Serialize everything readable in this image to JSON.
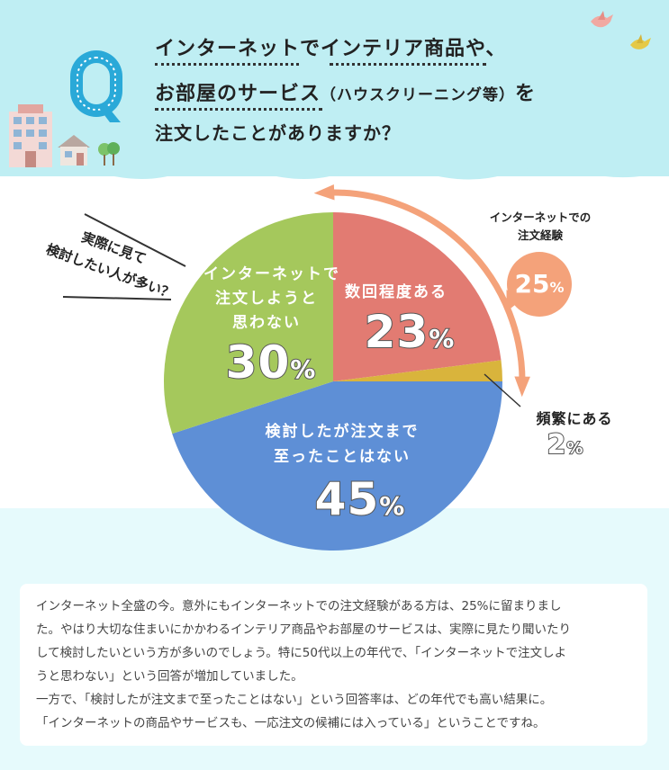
{
  "question": {
    "badge": "Q",
    "line1": "インターネットでインテリア商品や、",
    "line2_main": "お部屋のサービス",
    "line2_paren": "（ハウスクリーニング等）",
    "line2_tail": "を",
    "line3": "注文したことがありますか？"
  },
  "colors": {
    "header_bg": "#bfeef3",
    "slice_red": "#e27b72",
    "slice_yellow": "#d9b43c",
    "slice_blue": "#5e8fd6",
    "slice_green": "#a5c85c",
    "arrow": "#f4a27a"
  },
  "chart_data": {
    "type": "pie",
    "title": "インターネットでインテリア商品や、お部屋のサービス（ハウスクリーニング等）を注文したことがありますか？",
    "slices": [
      {
        "label": "数回程度ある",
        "value": 23,
        "color": "#e27b72"
      },
      {
        "label": "頻繁にある",
        "value": 2,
        "color": "#d9b43c"
      },
      {
        "label": "検討したが注文まで至ったことはない",
        "value": 45,
        "color": "#5e8fd6"
      },
      {
        "label": "インターネットで注文しようと思わない",
        "value": 30,
        "color": "#a5c85c"
      }
    ],
    "annotations": {
      "combined_label_line1": "インターネットでの",
      "combined_label_line2": "注文経験",
      "combined_value": "25",
      "side_note_line1": "実際に見て",
      "side_note_line2": "検討したい人が多い？"
    }
  },
  "labels": {
    "red_title": "数回程度ある",
    "red_value": "23",
    "yellow_title": "頻繁にある",
    "yellow_value": "2",
    "blue_title_line1": "検討したが注文まで",
    "blue_title_line2": "至ったことはない",
    "blue_value": "45",
    "green_title_line1": "インターネットで",
    "green_title_line2": "注文しようと",
    "green_title_line3": "思わない",
    "green_value": "30",
    "percent": "%"
  },
  "body_text": [
    "インターネット全盛の今。意外にもインターネットでの注文経験がある方は、25%に留まりまし",
    "た。やはり大切な住まいにかかわるインテリア商品やお部屋のサービスは、実際に見たり聞いたり",
    "して検討したいという方が多いのでしょう。特に50代以上の年代で、「インターネットで注文しよ",
    "うと思わない」という回答が増加していました。",
    "一方で、「検討したが注文まで至ったことはない」という回答率は、どの年代でも高い結果に。",
    "「インターネットの商品やサービスも、一応注文の候補には入っている」ということですね。"
  ]
}
